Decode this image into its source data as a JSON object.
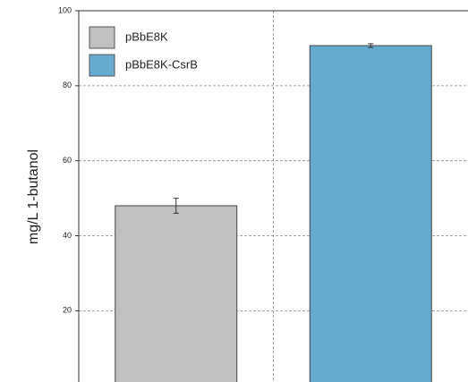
{
  "chart_data": {
    "type": "bar",
    "y_label": "mg/L 1-butanol",
    "categories": [
      null
    ],
    "series": [
      {
        "name": "pBbE8K",
        "color": "#c0c0c0",
        "values": [
          48
        ],
        "errors": [
          2
        ]
      },
      {
        "name": "pBbE8K-CsrB",
        "color": "#66aad0",
        "values": [
          90.7
        ],
        "errors": [
          0.5
        ]
      }
    ],
    "ylim": [
      1,
      100
    ],
    "yticks": [
      20,
      40,
      60,
      80,
      100
    ],
    "grid": true,
    "legend": "upper left"
  }
}
